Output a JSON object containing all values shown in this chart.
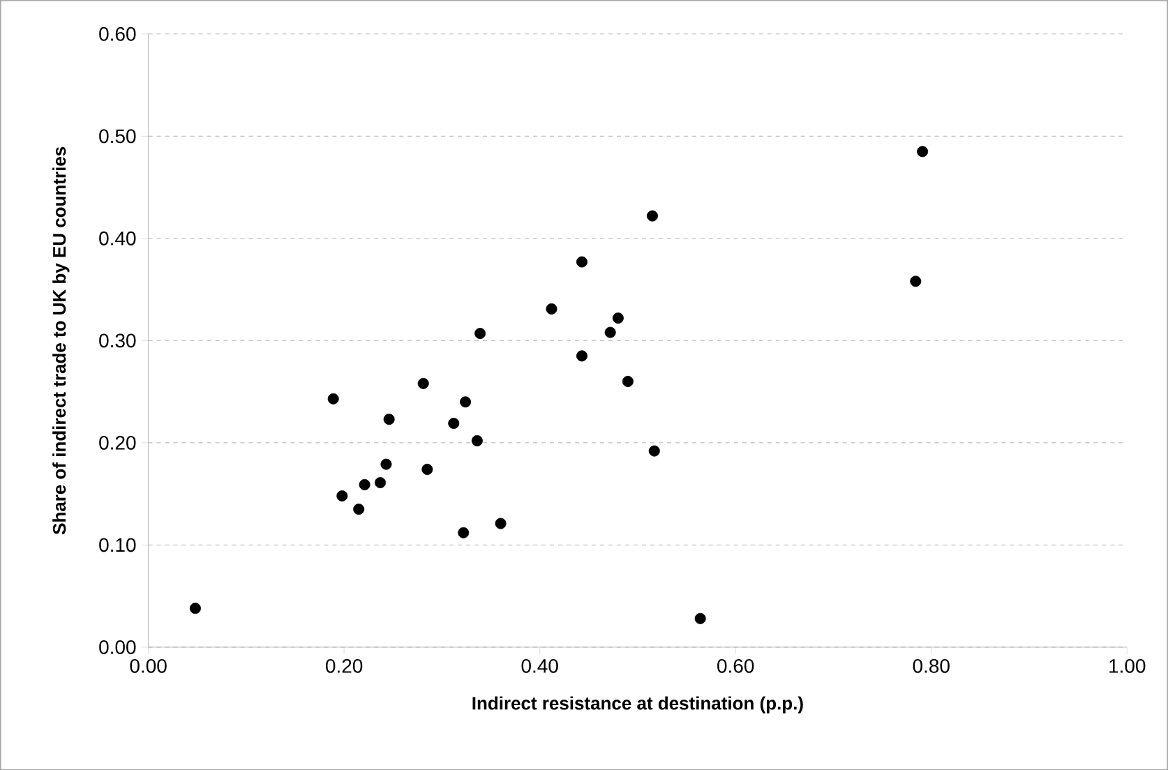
{
  "chart_data": {
    "type": "scatter",
    "xlabel": "Indirect resistance at destination (p.p.)",
    "ylabel": "Share of indirect trade to UK by EU countries",
    "xlim": [
      0,
      1
    ],
    "ylim": [
      0,
      0.6
    ],
    "xticks": [
      {
        "value": 0,
        "label": "0.00"
      },
      {
        "value": 0.2,
        "label": "0.20"
      },
      {
        "value": 0.4,
        "label": "0.40"
      },
      {
        "value": 0.6,
        "label": "0.60"
      },
      {
        "value": 0.8,
        "label": "0.80"
      },
      {
        "value": 1,
        "label": "1.00"
      }
    ],
    "yticks": [
      {
        "value": 0,
        "label": "0.00"
      },
      {
        "value": 0.1,
        "label": "0.10"
      },
      {
        "value": 0.2,
        "label": "0.20"
      },
      {
        "value": 0.3,
        "label": "0.30"
      },
      {
        "value": 0.4,
        "label": "0.40"
      },
      {
        "value": 0.5,
        "label": "0.50"
      },
      {
        "value": 0.6,
        "label": "0.60"
      }
    ],
    "grid": "y",
    "color": "#000000",
    "x": [
      0.048,
      0.189,
      0.198,
      0.215,
      0.221,
      0.237,
      0.243,
      0.246,
      0.281,
      0.285,
      0.312,
      0.322,
      0.324,
      0.336,
      0.339,
      0.36,
      0.412,
      0.443,
      0.443,
      0.472,
      0.48,
      0.49,
      0.515,
      0.517,
      0.564,
      0.784,
      0.791
    ],
    "values": [
      0.038,
      0.243,
      0.148,
      0.135,
      0.159,
      0.161,
      0.179,
      0.223,
      0.258,
      0.174,
      0.219,
      0.112,
      0.24,
      0.202,
      0.307,
      0.121,
      0.331,
      0.377,
      0.285,
      0.308,
      0.322,
      0.26,
      0.422,
      0.192,
      0.028,
      0.358,
      0.485
    ]
  }
}
